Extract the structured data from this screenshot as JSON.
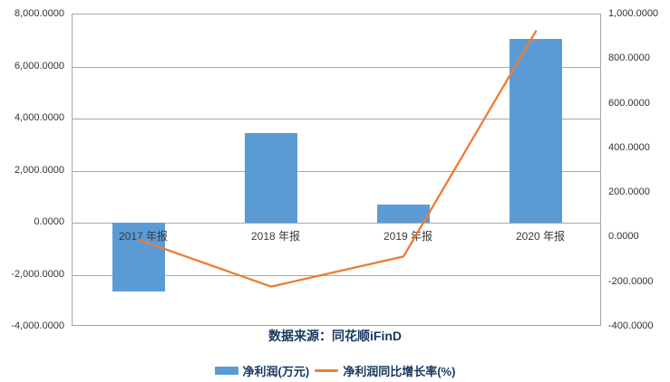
{
  "source_note": "数据来源：同花顺iFinD",
  "colors": {
    "bar": "#5B9BD5",
    "line": "#ED7D31",
    "grid": "#A8A8A8",
    "axis_text": "#333333",
    "note_text": "#17375E"
  },
  "legend": {
    "items": [
      {
        "label": "净利润(万元)",
        "swatch": "bar"
      },
      {
        "label": "净利润同比增长率(%)",
        "swatch": "line"
      }
    ]
  },
  "chart_data": {
    "type": "combo-bar-line",
    "categories": [
      "2017 年报",
      "2018 年报",
      "2019 年报",
      "2020 年报"
    ],
    "series": [
      {
        "name": "净利润(万元)",
        "type": "bar",
        "axis": "left",
        "color": "#5B9BD5",
        "values": [
          -2650,
          3450,
          690,
          7050
        ]
      },
      {
        "name": "净利润同比增长率(%)",
        "type": "line",
        "axis": "right",
        "color": "#ED7D31",
        "values": [
          -10,
          -220,
          -85,
          925
        ]
      }
    ],
    "left_axis": {
      "min": -4000,
      "max": 8000,
      "step": 2000,
      "ticks": [
        {
          "value": 8000,
          "label": "8,000.0000"
        },
        {
          "value": 6000,
          "label": "6,000.0000"
        },
        {
          "value": 4000,
          "label": "4,000.0000"
        },
        {
          "value": 2000,
          "label": "2,000.0000"
        },
        {
          "value": 0,
          "label": "0.0000"
        },
        {
          "value": -2000,
          "label": "-2,000.0000"
        },
        {
          "value": -4000,
          "label": "-4,000.0000"
        }
      ]
    },
    "right_axis": {
      "min": -400,
      "max": 1000,
      "step": 200,
      "ticks": [
        {
          "value": 1000,
          "label": "1,000.0000"
        },
        {
          "value": 800,
          "label": "800.0000"
        },
        {
          "value": 600,
          "label": "600.0000"
        },
        {
          "value": 400,
          "label": "400.0000"
        },
        {
          "value": 200,
          "label": "200.0000"
        },
        {
          "value": 0,
          "label": "0.0000"
        },
        {
          "value": -200,
          "label": "-200.0000"
        },
        {
          "value": -400,
          "label": "-400.0000"
        }
      ]
    },
    "gridlines": "horizontal",
    "legend_position": "bottom"
  }
}
